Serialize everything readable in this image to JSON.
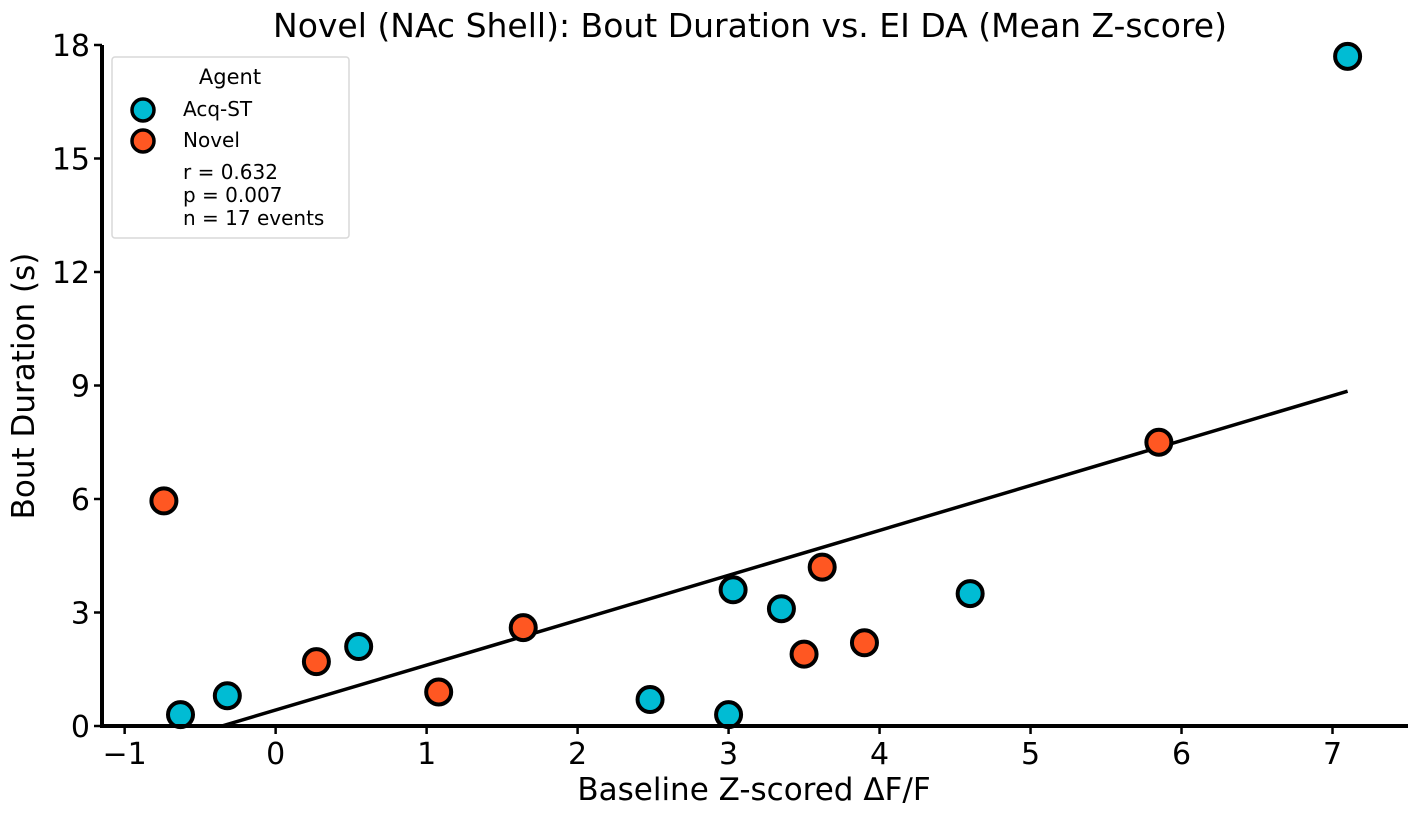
{
  "chart_data": {
    "type": "scatter",
    "title": "Novel (NAc Shell): Bout Duration vs. EI DA (Mean Z-score)",
    "xlabel": "Baseline Z-scored ΔF/F",
    "ylabel": "Bout Duration (s)",
    "xlim": [
      -1.15,
      7.5
    ],
    "ylim": [
      0,
      18
    ],
    "xticks": [
      -1,
      0,
      1,
      2,
      3,
      4,
      5,
      6,
      7
    ],
    "xtick_labels": [
      "−1",
      "0",
      "1",
      "2",
      "3",
      "4",
      "5",
      "6",
      "7"
    ],
    "yticks": [
      0,
      3,
      6,
      9,
      12,
      15,
      18
    ],
    "ytick_labels": [
      "0",
      "3",
      "6",
      "9",
      "12",
      "15",
      "18"
    ],
    "grid": false,
    "legend": {
      "title": "Agent",
      "placement": "top-left",
      "stats": [
        "r = 0.632",
        "p = 0.007",
        "n = 17 events"
      ]
    },
    "series": [
      {
        "name": "Acq-ST",
        "color": "#00bcd4",
        "points": [
          {
            "x": -0.63,
            "y": 0.3
          },
          {
            "x": -0.32,
            "y": 0.8
          },
          {
            "x": 0.55,
            "y": 2.1
          },
          {
            "x": 2.48,
            "y": 0.7
          },
          {
            "x": 3.0,
            "y": 0.3
          },
          {
            "x": 3.03,
            "y": 3.6
          },
          {
            "x": 3.35,
            "y": 3.1
          },
          {
            "x": 4.6,
            "y": 3.5
          },
          {
            "x": 7.1,
            "y": 17.7
          }
        ]
      },
      {
        "name": "Novel",
        "color": "#ff5722",
        "points": [
          {
            "x": -0.74,
            "y": 5.95
          },
          {
            "x": 0.27,
            "y": 1.7
          },
          {
            "x": 1.08,
            "y": 0.9
          },
          {
            "x": 1.64,
            "y": 2.6
          },
          {
            "x": 3.5,
            "y": 1.9
          },
          {
            "x": 3.62,
            "y": 4.2
          },
          {
            "x": 3.9,
            "y": 2.2
          },
          {
            "x": 5.85,
            "y": 7.5
          }
        ]
      }
    ],
    "fit_line": {
      "color": "#000000",
      "x": [
        -0.65,
        7.1
      ],
      "y": [
        -0.35,
        8.85
      ]
    }
  }
}
